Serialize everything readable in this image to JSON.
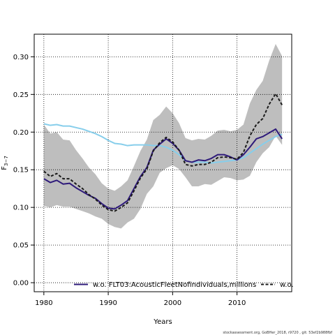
{
  "chart_data": {
    "type": "line",
    "xlabel": "Years",
    "ylabel": "F3-7",
    "ylabel_main": "F",
    "ylabel_sub": "3−7",
    "xlim": [
      1978.5,
      2018.5
    ],
    "ylim": [
      -0.012,
      0.33
    ],
    "xticks": [
      1980,
      1990,
      2000,
      2010
    ],
    "yticks": [
      0.0,
      0.05,
      0.1,
      0.15,
      0.2,
      0.25,
      0.3
    ],
    "ytick_labels": [
      "0.00",
      "0.05",
      "0.10",
      "0.15",
      "0.20",
      "0.25",
      "0.30"
    ],
    "grid": true,
    "legend_position": "bottom",
    "x": [
      1980,
      1981,
      1982,
      1983,
      1984,
      1985,
      1986,
      1987,
      1988,
      1989,
      1990,
      1991,
      1992,
      1993,
      1994,
      1995,
      1996,
      1997,
      1998,
      1999,
      2000,
      2001,
      2002,
      2003,
      2004,
      2005,
      2006,
      2007,
      2008,
      2009,
      2010,
      2011,
      2012,
      2013,
      2014,
      2015,
      2016,
      2017
    ],
    "band": {
      "color": "#bebebe",
      "upper": [
        0.21,
        0.198,
        0.2,
        0.19,
        0.189,
        0.176,
        0.165,
        0.153,
        0.144,
        0.132,
        0.125,
        0.122,
        0.128,
        0.136,
        0.155,
        0.175,
        0.19,
        0.216,
        0.223,
        0.234,
        0.225,
        0.212,
        0.192,
        0.189,
        0.191,
        0.19,
        0.195,
        0.202,
        0.203,
        0.201,
        0.203,
        0.21,
        0.238,
        0.256,
        0.268,
        0.295,
        0.317,
        0.301
      ],
      "lower": [
        0.102,
        0.1,
        0.103,
        0.101,
        0.101,
        0.098,
        0.095,
        0.092,
        0.088,
        0.085,
        0.078,
        0.074,
        0.072,
        0.08,
        0.085,
        0.098,
        0.118,
        0.128,
        0.146,
        0.152,
        0.156,
        0.151,
        0.14,
        0.128,
        0.128,
        0.131,
        0.13,
        0.135,
        0.14,
        0.139,
        0.136,
        0.137,
        0.142,
        0.16,
        0.172,
        0.18,
        0.195,
        0.183
      ]
    },
    "series": [
      {
        "name": "w.o. FLT03:AcousticFleetNofindividuals,millions",
        "color": "#2e1a7a",
        "style": "solid",
        "values": [
          0.138,
          0.133,
          0.136,
          0.131,
          0.132,
          0.126,
          0.121,
          0.116,
          0.112,
          0.105,
          0.099,
          0.098,
          0.103,
          0.109,
          0.125,
          0.141,
          0.153,
          0.176,
          0.184,
          0.191,
          0.185,
          0.176,
          0.162,
          0.16,
          0.163,
          0.162,
          0.165,
          0.17,
          0.17,
          0.167,
          0.163,
          0.17,
          0.18,
          0.191,
          0.194,
          0.199,
          0.204,
          0.191
        ]
      },
      {
        "name": "w.o.",
        "color": "#1a1a1a",
        "style": "dashed",
        "values": [
          0.148,
          0.141,
          0.145,
          0.138,
          0.138,
          0.131,
          0.125,
          0.117,
          0.111,
          0.103,
          0.097,
          0.095,
          0.1,
          0.106,
          0.122,
          0.139,
          0.151,
          0.175,
          0.186,
          0.193,
          0.187,
          0.176,
          0.157,
          0.155,
          0.157,
          0.157,
          0.16,
          0.166,
          0.167,
          0.166,
          0.164,
          0.173,
          0.195,
          0.21,
          0.218,
          0.237,
          0.251,
          0.236
        ]
      },
      {
        "name": "",
        "color": "#87ceeb",
        "style": "solid",
        "values": [
          0.211,
          0.209,
          0.21,
          0.208,
          0.208,
          0.206,
          0.204,
          0.201,
          0.198,
          0.194,
          0.189,
          0.185,
          0.184,
          0.182,
          0.183,
          0.183,
          0.183,
          0.182,
          0.182,
          0.18,
          0.176,
          0.17,
          0.162,
          0.16,
          0.16,
          0.16,
          0.159,
          0.16,
          0.161,
          0.162,
          0.163,
          0.166,
          0.172,
          0.178,
          0.184,
          0.189,
          0.194,
          0.197
        ]
      }
    ]
  },
  "footer": "stockassessment.org, GoBHer_2018, r9720 , git: 53ef2b988fbf"
}
